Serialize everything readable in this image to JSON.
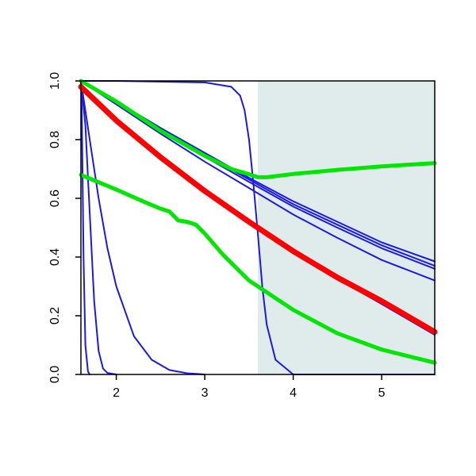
{
  "chart_data": {
    "type": "line",
    "title": "",
    "xlabel": "",
    "ylabel": "",
    "xlim": [
      1.6,
      5.6
    ],
    "ylim": [
      0.0,
      1.0
    ],
    "x_ticks": [
      2,
      3,
      4,
      5
    ],
    "x_tick_labels": [
      "2",
      "3",
      "4",
      "5"
    ],
    "y_ticks": [
      0.0,
      0.2,
      0.4,
      0.6,
      0.8,
      1.0
    ],
    "y_tick_labels": [
      "0.0",
      "0.2",
      "0.4",
      "0.6",
      "0.8",
      "1.0"
    ],
    "grid": false,
    "legend": "none",
    "shaded_region": {
      "x_start": 3.6,
      "x_end": 5.6,
      "color": "#e0ecec"
    },
    "colors": {
      "blue": "#1a1ae6",
      "red": "#ff0000",
      "green": "#00e600",
      "axis": "#000000"
    },
    "series": [
      {
        "color": "blue",
        "x": [
          1.6,
          1.61,
          1.63,
          1.65,
          1.68,
          1.7
        ],
        "y": [
          1.0,
          0.9,
          0.4,
          0.1,
          0.01,
          0.0
        ]
      },
      {
        "color": "blue",
        "x": [
          1.6,
          1.65,
          1.7,
          1.75,
          1.8,
          1.85,
          1.9,
          2.0
        ],
        "y": [
          1.0,
          0.85,
          0.55,
          0.25,
          0.08,
          0.02,
          0.005,
          0.0
        ]
      },
      {
        "color": "blue",
        "x": [
          1.6,
          1.7,
          1.8,
          1.9,
          2.0,
          2.2,
          2.4,
          2.6,
          2.8,
          3.0
        ],
        "y": [
          1.0,
          0.8,
          0.6,
          0.43,
          0.3,
          0.13,
          0.05,
          0.015,
          0.004,
          0.0
        ]
      },
      {
        "color": "blue",
        "x": [
          1.6,
          2.0,
          3.0,
          3.3,
          3.4,
          3.45,
          3.5,
          3.55,
          3.6,
          3.65,
          3.7,
          3.8,
          4.0,
          5.6
        ],
        "y": [
          1.0,
          1.0,
          0.995,
          0.98,
          0.95,
          0.9,
          0.8,
          0.65,
          0.48,
          0.3,
          0.17,
          0.05,
          0.0,
          0.0
        ]
      },
      {
        "color": "blue",
        "x": [
          1.6,
          2.0,
          2.5,
          3.0,
          3.5,
          4.0,
          4.5,
          5.0,
          5.6
        ],
        "y": [
          1.0,
          0.93,
          0.84,
          0.755,
          0.67,
          0.59,
          0.52,
          0.45,
          0.385
        ]
      },
      {
        "color": "blue",
        "x": [
          1.6,
          2.0,
          2.5,
          3.0,
          3.5,
          4.0,
          4.5,
          5.0,
          5.6
        ],
        "y": [
          1.0,
          0.928,
          0.836,
          0.748,
          0.664,
          0.58,
          0.51,
          0.44,
          0.37
        ]
      },
      {
        "color": "blue",
        "x": [
          1.6,
          2.0,
          2.5,
          3.0,
          3.5,
          4.0,
          4.5,
          5.0,
          5.6
        ],
        "y": [
          1.0,
          0.925,
          0.832,
          0.742,
          0.656,
          0.572,
          0.5,
          0.43,
          0.36
        ]
      },
      {
        "color": "blue",
        "x": [
          1.6,
          2.0,
          2.5,
          3.0,
          3.5,
          4.0,
          4.5,
          5.0,
          5.6
        ],
        "y": [
          1.0,
          0.92,
          0.82,
          0.725,
          0.635,
          0.545,
          0.465,
          0.39,
          0.32
        ]
      },
      {
        "color": "blue",
        "x": [
          1.6,
          2.0,
          2.5,
          3.0,
          3.5,
          4.0,
          4.5,
          5.0,
          5.6
        ],
        "y": [
          0.98,
          0.86,
          0.735,
          0.62,
          0.515,
          0.415,
          0.325,
          0.24,
          0.135
        ]
      },
      {
        "color": "red",
        "x": [
          1.6,
          2.0,
          2.5,
          3.0,
          3.5,
          4.0,
          4.5,
          5.0,
          5.6
        ],
        "y": [
          0.98,
          0.865,
          0.74,
          0.625,
          0.52,
          0.42,
          0.33,
          0.25,
          0.145
        ]
      },
      {
        "color": "green",
        "x": [
          1.6,
          2.0,
          2.5,
          3.0,
          3.3,
          3.5,
          3.6,
          3.7,
          4.0,
          4.5,
          5.0,
          5.6
        ],
        "y": [
          1.0,
          0.93,
          0.83,
          0.745,
          0.7,
          0.682,
          0.672,
          0.672,
          0.683,
          0.697,
          0.709,
          0.72
        ]
      },
      {
        "color": "green",
        "x": [
          1.6,
          2.0,
          2.3,
          2.5,
          2.6,
          2.65,
          2.7,
          2.8,
          2.9,
          3.0,
          3.2,
          3.5,
          4.0,
          4.5,
          5.0,
          5.6
        ],
        "y": [
          0.68,
          0.63,
          0.59,
          0.565,
          0.555,
          0.54,
          0.525,
          0.52,
          0.51,
          0.48,
          0.41,
          0.32,
          0.22,
          0.14,
          0.085,
          0.04
        ]
      }
    ]
  }
}
